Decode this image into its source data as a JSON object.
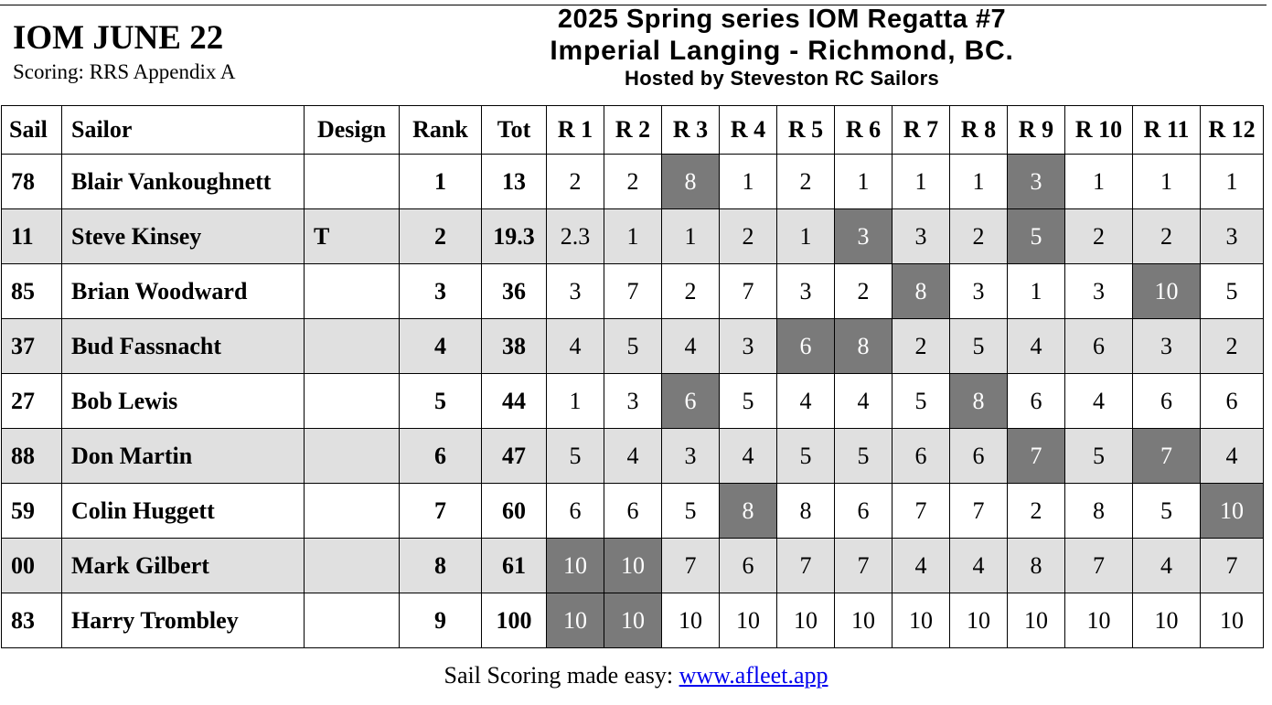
{
  "header": {
    "event_title": "IOM JUNE 22",
    "scoring": "Scoring: RRS Appendix A"
  },
  "banner": {
    "line1": "2025 Spring series IOM Regatta #7",
    "line2": "Imperial Langing - Richmond, BC.",
    "line3": "Hosted by Steveston RC Sailors"
  },
  "table": {
    "headers": [
      "Sail",
      "Sailor",
      "Design",
      "Rank",
      "Tot",
      "R 1",
      "R 2",
      "R 3",
      "R 4",
      "R 5",
      "R 6",
      "R 7",
      "R 8",
      "R 9",
      "R 10",
      "R 11",
      "R 12"
    ],
    "rows": [
      {
        "sail": "78",
        "sailor": "Blair Vankoughnett",
        "design": "",
        "rank": "1",
        "tot": "13",
        "races": [
          "2",
          "2",
          "8",
          "1",
          "2",
          "1",
          "1",
          "1",
          "3",
          "1",
          "1",
          "1"
        ],
        "discards": [
          2,
          8
        ]
      },
      {
        "sail": "11",
        "sailor": "Steve Kinsey",
        "design": "T",
        "rank": "2",
        "tot": "19.3",
        "races": [
          "2.3",
          "1",
          "1",
          "2",
          "1",
          "3",
          "3",
          "2",
          "5",
          "2",
          "2",
          "3"
        ],
        "discards": [
          5,
          8
        ]
      },
      {
        "sail": "85",
        "sailor": "Brian Woodward",
        "design": "",
        "rank": "3",
        "tot": "36",
        "races": [
          "3",
          "7",
          "2",
          "7",
          "3",
          "2",
          "8",
          "3",
          "1",
          "3",
          "10",
          "5"
        ],
        "discards": [
          6,
          10
        ]
      },
      {
        "sail": "37",
        "sailor": "Bud Fassnacht",
        "design": "",
        "rank": "4",
        "tot": "38",
        "races": [
          "4",
          "5",
          "4",
          "3",
          "6",
          "8",
          "2",
          "5",
          "4",
          "6",
          "3",
          "2"
        ],
        "discards": [
          4,
          5
        ]
      },
      {
        "sail": "27",
        "sailor": "Bob Lewis",
        "design": "",
        "rank": "5",
        "tot": "44",
        "races": [
          "1",
          "3",
          "6",
          "5",
          "4",
          "4",
          "5",
          "8",
          "6",
          "4",
          "6",
          "6"
        ],
        "discards": [
          2,
          7
        ]
      },
      {
        "sail": "88",
        "sailor": "Don Martin",
        "design": "",
        "rank": "6",
        "tot": "47",
        "races": [
          "5",
          "4",
          "3",
          "4",
          "5",
          "5",
          "6",
          "6",
          "7",
          "5",
          "7",
          "4"
        ],
        "discards": [
          8,
          10
        ]
      },
      {
        "sail": "59",
        "sailor": "Colin Huggett",
        "design": "",
        "rank": "7",
        "tot": "60",
        "races": [
          "6",
          "6",
          "5",
          "8",
          "8",
          "6",
          "7",
          "7",
          "2",
          "8",
          "5",
          "10"
        ],
        "discards": [
          3,
          11
        ]
      },
      {
        "sail": "00",
        "sailor": "Mark Gilbert",
        "design": "",
        "rank": "8",
        "tot": "61",
        "races": [
          "10",
          "10",
          "7",
          "6",
          "7",
          "7",
          "4",
          "4",
          "8",
          "7",
          "4",
          "7"
        ],
        "discards": [
          0,
          1
        ]
      },
      {
        "sail": "83",
        "sailor": "Harry Trombley",
        "design": "",
        "rank": "9",
        "tot": "100",
        "races": [
          "10",
          "10",
          "10",
          "10",
          "10",
          "10",
          "10",
          "10",
          "10",
          "10",
          "10",
          "10"
        ],
        "discards": [
          0,
          1
        ]
      }
    ]
  },
  "footer": {
    "text": "Sail Scoring made easy: ",
    "link_text": "www.afleet.app"
  },
  "colors": {
    "discard_bg": "#7a7a7a",
    "alt_row_bg": "#e0e0e0",
    "link": "#0000ee"
  }
}
